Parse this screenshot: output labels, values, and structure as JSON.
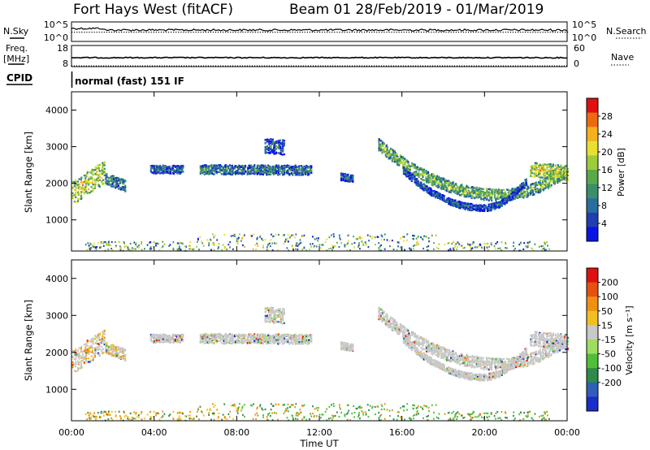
{
  "title": {
    "station": "Fort Hays West (fitACF)",
    "beam_date": "Beam 01   28/Feb/2019 - 01/Mar/2019"
  },
  "status_labels": {
    "nsky": "N.Sky",
    "nsearch": "N.Search",
    "freq_line1": "Freq.",
    "freq_line2": "[MHz]",
    "nave": "Nave",
    "cpid": "CPID",
    "noise_ticks_left": [
      "10^5",
      "10^0"
    ],
    "noise_ticks_right": [
      "10^5",
      "10^0"
    ],
    "freq_ticks": [
      "18",
      "8"
    ],
    "nave_ticks": [
      "60",
      "0"
    ]
  },
  "control_program": "normal (fast) 151 IF",
  "colors": {
    "frame": "#000000",
    "ground_scatter": "#c8c8c8"
  },
  "chart_data": [
    {
      "type": "heatmap",
      "panel": "power",
      "ylabel": "Slant Range [km]",
      "xlabel": "",
      "yticks": [
        "4000",
        "3000",
        "2000",
        "1000"
      ],
      "ylim": [
        150,
        4500
      ],
      "xlim_hours": [
        0,
        24
      ],
      "colorbar": {
        "label": "Power [dB]",
        "ticks": [
          "28",
          "24",
          "20",
          "16",
          "12",
          "8",
          "4"
        ],
        "range": [
          0,
          32
        ],
        "colors": [
          "#0a14e6",
          "#1f3fb0",
          "#2a6e9e",
          "#3a8f6a",
          "#5aa84a",
          "#9ccc3c",
          "#e8e030",
          "#f5b020",
          "#ee6a10",
          "#e01010"
        ]
      },
      "echo_regions": [
        {
          "t_start": 0.0,
          "t_end": 1.6,
          "r_center": [
            1750,
            2350
          ],
          "r_half_width": 320,
          "power_db": 20
        },
        {
          "t_start": 1.6,
          "t_end": 2.6,
          "r_center": [
            2150,
            1950
          ],
          "r_half_width": 150,
          "power_db": 12
        },
        {
          "t_start": 3.8,
          "t_end": 5.4,
          "r_center": [
            2400,
            2400
          ],
          "r_half_width": 110,
          "power_db": 9
        },
        {
          "t_start": 6.2,
          "t_end": 11.6,
          "r_center": [
            2400,
            2380
          ],
          "r_half_width": 130,
          "power_db": 11
        },
        {
          "t_start": 9.3,
          "t_end": 10.3,
          "r_center": [
            3050,
            3000
          ],
          "r_half_width": 200,
          "power_db": 8
        },
        {
          "t_start": 13.0,
          "t_end": 13.6,
          "r_center": [
            2200,
            2150
          ],
          "r_half_width": 100,
          "power_db": 8
        },
        {
          "t_start": 14.8,
          "t_end": 23.9,
          "arc": true,
          "r_edges": [
            3100,
            1700,
            2350
          ],
          "r_half_width": 160,
          "power_db": 16
        },
        {
          "t_start": 16.0,
          "t_end": 22.0,
          "arc": true,
          "r_edges": [
            2400,
            1350,
            2100
          ],
          "r_half_width": 90,
          "power_db": 8
        },
        {
          "t_start": 22.2,
          "t_end": 24.0,
          "r_center": [
            2400,
            2300
          ],
          "r_half_width": 200,
          "power_db": 20
        }
      ]
    },
    {
      "type": "heatmap",
      "panel": "velocity",
      "ylabel": "Slant Range [km]",
      "xlabel": "Time UT",
      "xticks": [
        "00:00",
        "04:00",
        "08:00",
        "12:00",
        "16:00",
        "20:00",
        "00:00"
      ],
      "yticks": [
        "4000",
        "3000",
        "2000",
        "1000"
      ],
      "ylim": [
        150,
        4500
      ],
      "xlim_hours": [
        0,
        24
      ],
      "colorbar": {
        "label": "Velocity [m s⁻¹]",
        "ticks": [
          "200",
          "100",
          "50",
          "15",
          "-15",
          "-50",
          "-100",
          "-200"
        ],
        "colors": [
          "#1a2ec8",
          "#2f5fb8",
          "#2d8a4a",
          "#4fbf3a",
          "#a0dc60",
          "#c8c8c8",
          "#f0c020",
          "#f09010",
          "#e85010",
          "#e01010"
        ]
      }
    }
  ]
}
